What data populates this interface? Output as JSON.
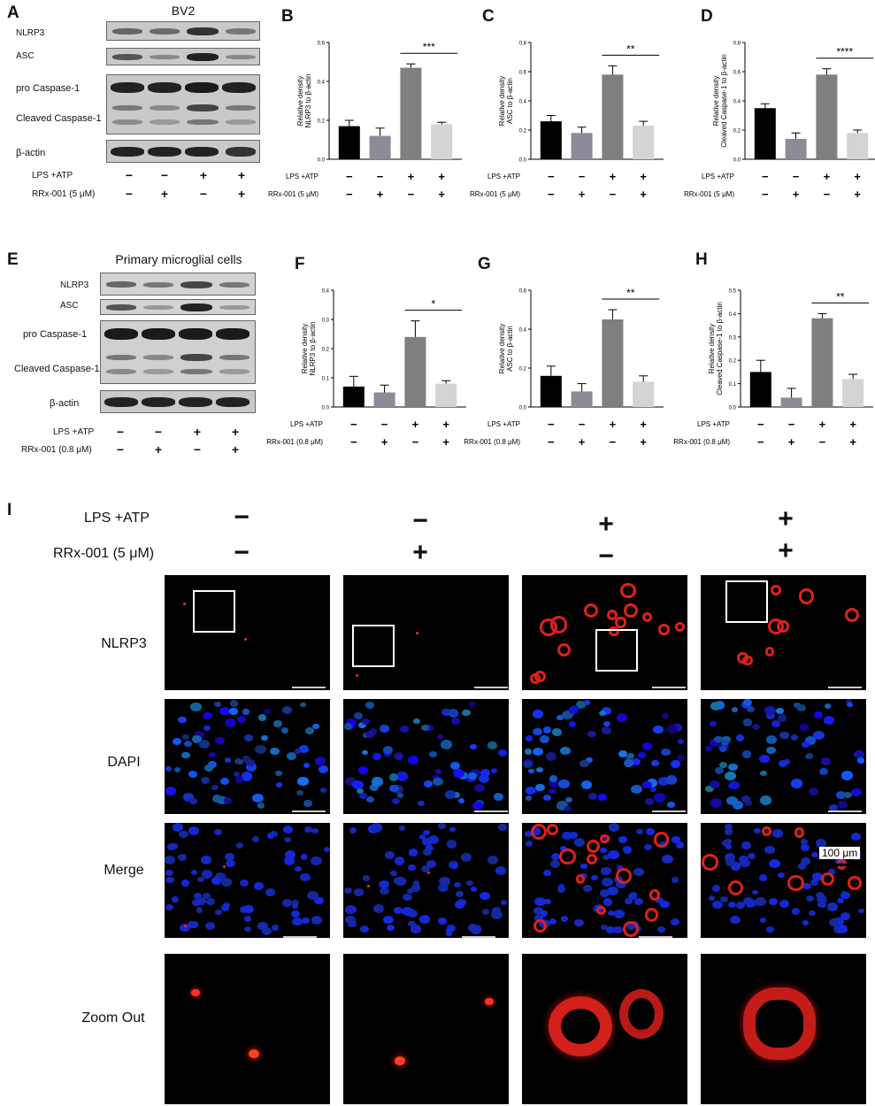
{
  "panels": {
    "A": "A",
    "B": "B",
    "C": "C",
    "D": "D",
    "E": "E",
    "F": "F",
    "G": "G",
    "H": "H",
    "I": "I"
  },
  "blots": {
    "bv2": {
      "title": "BV2",
      "bands": [
        "NLRP3",
        "ASC",
        "pro Caspase-1",
        "Cleaved Caspase-1",
        "β-actin"
      ],
      "lps_label": "LPS +ATP",
      "rrx_label": "RRx-001 (5 μM)",
      "lps": [
        "−",
        "−",
        "+",
        "+"
      ],
      "rrx": [
        "−",
        "+",
        "−",
        "+"
      ]
    },
    "primary": {
      "title": "Primary microglial cells",
      "bands": [
        "NLRP3",
        "ASC",
        "pro Caspase-1",
        "Cleaved Caspase-1",
        "β-actin"
      ],
      "lps_label": "LPS +ATP",
      "rrx_label": "RRx-001 (0.8 μM)",
      "lps": [
        "−",
        "−",
        "+",
        "+"
      ],
      "rrx": [
        "−",
        "+",
        "−",
        "+"
      ]
    }
  },
  "colors": {
    "bar1": "#000000",
    "bar2": "#8c8c99",
    "bar3": "#7f7f7f",
    "bar4": "#d4d4d4"
  },
  "chart_data": [
    {
      "id": "B",
      "type": "bar",
      "ylabel": [
        "Relative density",
        "NLRP3 to β-actin"
      ],
      "ylim": [
        0,
        0.6
      ],
      "yticks": [
        0,
        0.2,
        0.4,
        0.6
      ],
      "yticklabels": [
        "0.0",
        "0.2",
        "0.4",
        "0.6"
      ],
      "values": [
        0.17,
        0.12,
        0.47,
        0.18
      ],
      "errors": [
        0.03,
        0.04,
        0.02,
        0.01
      ],
      "sig": "***",
      "sig_from": 2,
      "sig_to": 3,
      "lps_label": "LPS +ATP",
      "rrx_label": "RRx-001 (5 μM)",
      "lps": [
        "−",
        "−",
        "+",
        "+"
      ],
      "rrx": [
        "−",
        "+",
        "−",
        "+"
      ]
    },
    {
      "id": "C",
      "type": "bar",
      "ylabel": [
        "Relative density",
        "ASC to β-actin"
      ],
      "ylim": [
        0,
        0.8
      ],
      "yticks": [
        0,
        0.2,
        0.4,
        0.6,
        0.8
      ],
      "yticklabels": [
        "0.0",
        "0.2",
        "0.4",
        "0.6",
        "0.8"
      ],
      "values": [
        0.26,
        0.18,
        0.58,
        0.23
      ],
      "errors": [
        0.04,
        0.04,
        0.06,
        0.03
      ],
      "sig": "**",
      "sig_from": 2,
      "sig_to": 3,
      "lps_label": "LPS +ATP",
      "rrx_label": "RRx-001 (5 μM)",
      "lps": [
        "−",
        "−",
        "+",
        "+"
      ],
      "rrx": [
        "−",
        "+",
        "−",
        "+"
      ]
    },
    {
      "id": "D",
      "type": "bar",
      "ylabel": [
        "Relative density",
        "Cleaved Caspase-1 to β-actin"
      ],
      "ylim": [
        0,
        0.8
      ],
      "yticks": [
        0,
        0.2,
        0.4,
        0.6,
        0.8
      ],
      "yticklabels": [
        "0.0",
        "0.2",
        "0.4",
        "0.6",
        "0.8"
      ],
      "values": [
        0.35,
        0.14,
        0.58,
        0.18
      ],
      "errors": [
        0.03,
        0.04,
        0.04,
        0.02
      ],
      "sig": "****",
      "sig_from": 2,
      "sig_to": 3,
      "lps_label": "LPS +ATP",
      "rrx_label": "RRx-001 (5 μM)",
      "lps": [
        "−",
        "−",
        "+",
        "+"
      ],
      "rrx": [
        "−",
        "+",
        "−",
        "+"
      ]
    },
    {
      "id": "F",
      "type": "bar",
      "ylabel": [
        "Relative density",
        "NLRP3 to β-actin"
      ],
      "ylim": [
        0,
        0.4
      ],
      "yticks": [
        0,
        0.1,
        0.2,
        0.3,
        0.4
      ],
      "yticklabels": [
        "0.0",
        "0.1",
        "0.2",
        "0.3",
        "0.4"
      ],
      "values": [
        0.07,
        0.05,
        0.24,
        0.08
      ],
      "errors": [
        0.035,
        0.025,
        0.055,
        0.01
      ],
      "sig": "*",
      "sig_from": 2,
      "sig_to": 3,
      "lps_label": "LPS +ATP",
      "rrx_label": "RRx-001 (0.8 μM)",
      "lps": [
        "−",
        "−",
        "+",
        "+"
      ],
      "rrx": [
        "−",
        "+",
        "−",
        "+"
      ]
    },
    {
      "id": "G",
      "type": "bar",
      "ylabel": [
        "Relative density",
        "ASC to β-actin"
      ],
      "ylim": [
        0,
        0.6
      ],
      "yticks": [
        0,
        0.2,
        0.4,
        0.6
      ],
      "yticklabels": [
        "0.0",
        "0.2",
        "0.4",
        "0.6"
      ],
      "values": [
        0.16,
        0.08,
        0.45,
        0.13
      ],
      "errors": [
        0.05,
        0.04,
        0.05,
        0.03
      ],
      "sig": "**",
      "sig_from": 2,
      "sig_to": 3,
      "lps_label": "LPS +ATP",
      "rrx_label": "RRx-001 (0.8 μM)",
      "lps": [
        "−",
        "−",
        "+",
        "+"
      ],
      "rrx": [
        "−",
        "+",
        "−",
        "+"
      ]
    },
    {
      "id": "H",
      "type": "bar",
      "ylabel": [
        "Relative density",
        "Cleaved Caspase-1 to β-actin"
      ],
      "ylim": [
        0,
        0.5
      ],
      "yticks": [
        0,
        0.1,
        0.2,
        0.3,
        0.4,
        0.5
      ],
      "yticklabels": [
        "0.0",
        "0.1",
        "0.2",
        "0.3",
        "0.4",
        "0.5"
      ],
      "values": [
        0.15,
        0.04,
        0.38,
        0.12
      ],
      "errors": [
        0.05,
        0.04,
        0.02,
        0.02
      ],
      "sig": "**",
      "sig_from": 2,
      "sig_to": 3,
      "lps_label": "LPS +ATP",
      "rrx_label": "RRx-001 (0.8 μM)",
      "lps": [
        "−",
        "−",
        "+",
        "+"
      ],
      "rrx": [
        "−",
        "+",
        "−",
        "+"
      ]
    }
  ],
  "imaging": {
    "lps_label": "LPS +ATP",
    "rrx_label": "RRx-001 (5 μM)",
    "lps": [
      "−",
      "−",
      "+",
      "+"
    ],
    "rrx": [
      "−",
      "+",
      "−",
      "+"
    ],
    "rows": [
      "NLRP3",
      "DAPI",
      "Merge",
      "Zoom Out"
    ],
    "scale": "100 μm"
  }
}
